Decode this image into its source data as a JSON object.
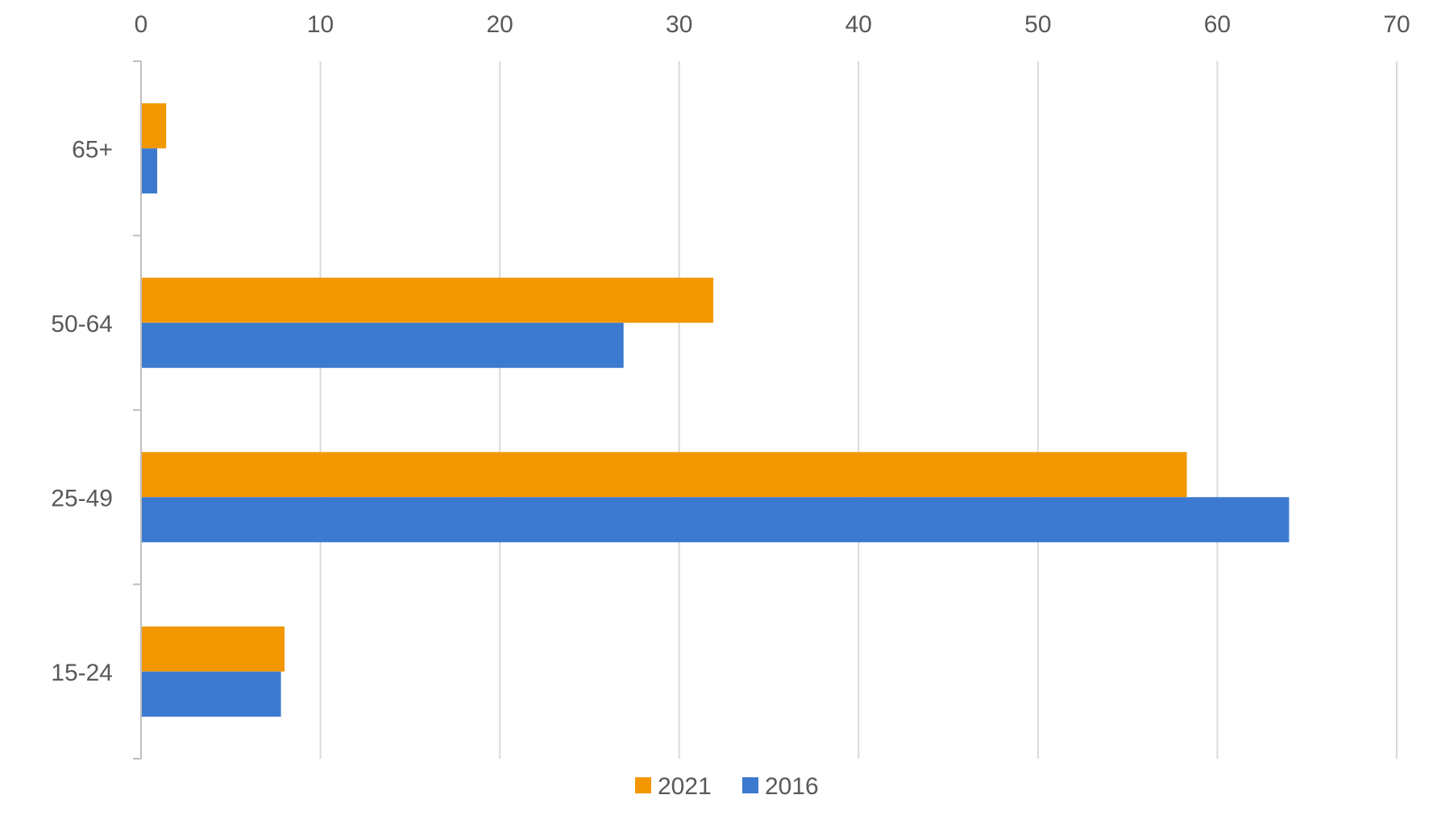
{
  "chart_data": {
    "type": "bar",
    "orientation": "horizontal",
    "categories": [
      "15-24",
      "25-49",
      "50-64",
      "65+"
    ],
    "series": [
      {
        "name": "2016",
        "color": "#3c7ad0",
        "values": [
          7.8,
          64.0,
          26.9,
          0.9
        ]
      },
      {
        "name": "2021",
        "color": "#f39700",
        "values": [
          8.0,
          58.3,
          31.9,
          1.4
        ]
      }
    ],
    "xlim": [
      0,
      70
    ],
    "x_ticks": [
      "0",
      "10",
      "20",
      "30",
      "40",
      "50",
      "60",
      "70"
    ],
    "x_axis_position": "top",
    "grid": true,
    "legend": {
      "position": "bottom",
      "entries": [
        "2021",
        "2016"
      ]
    },
    "title": "",
    "xlabel": "",
    "ylabel": ""
  }
}
